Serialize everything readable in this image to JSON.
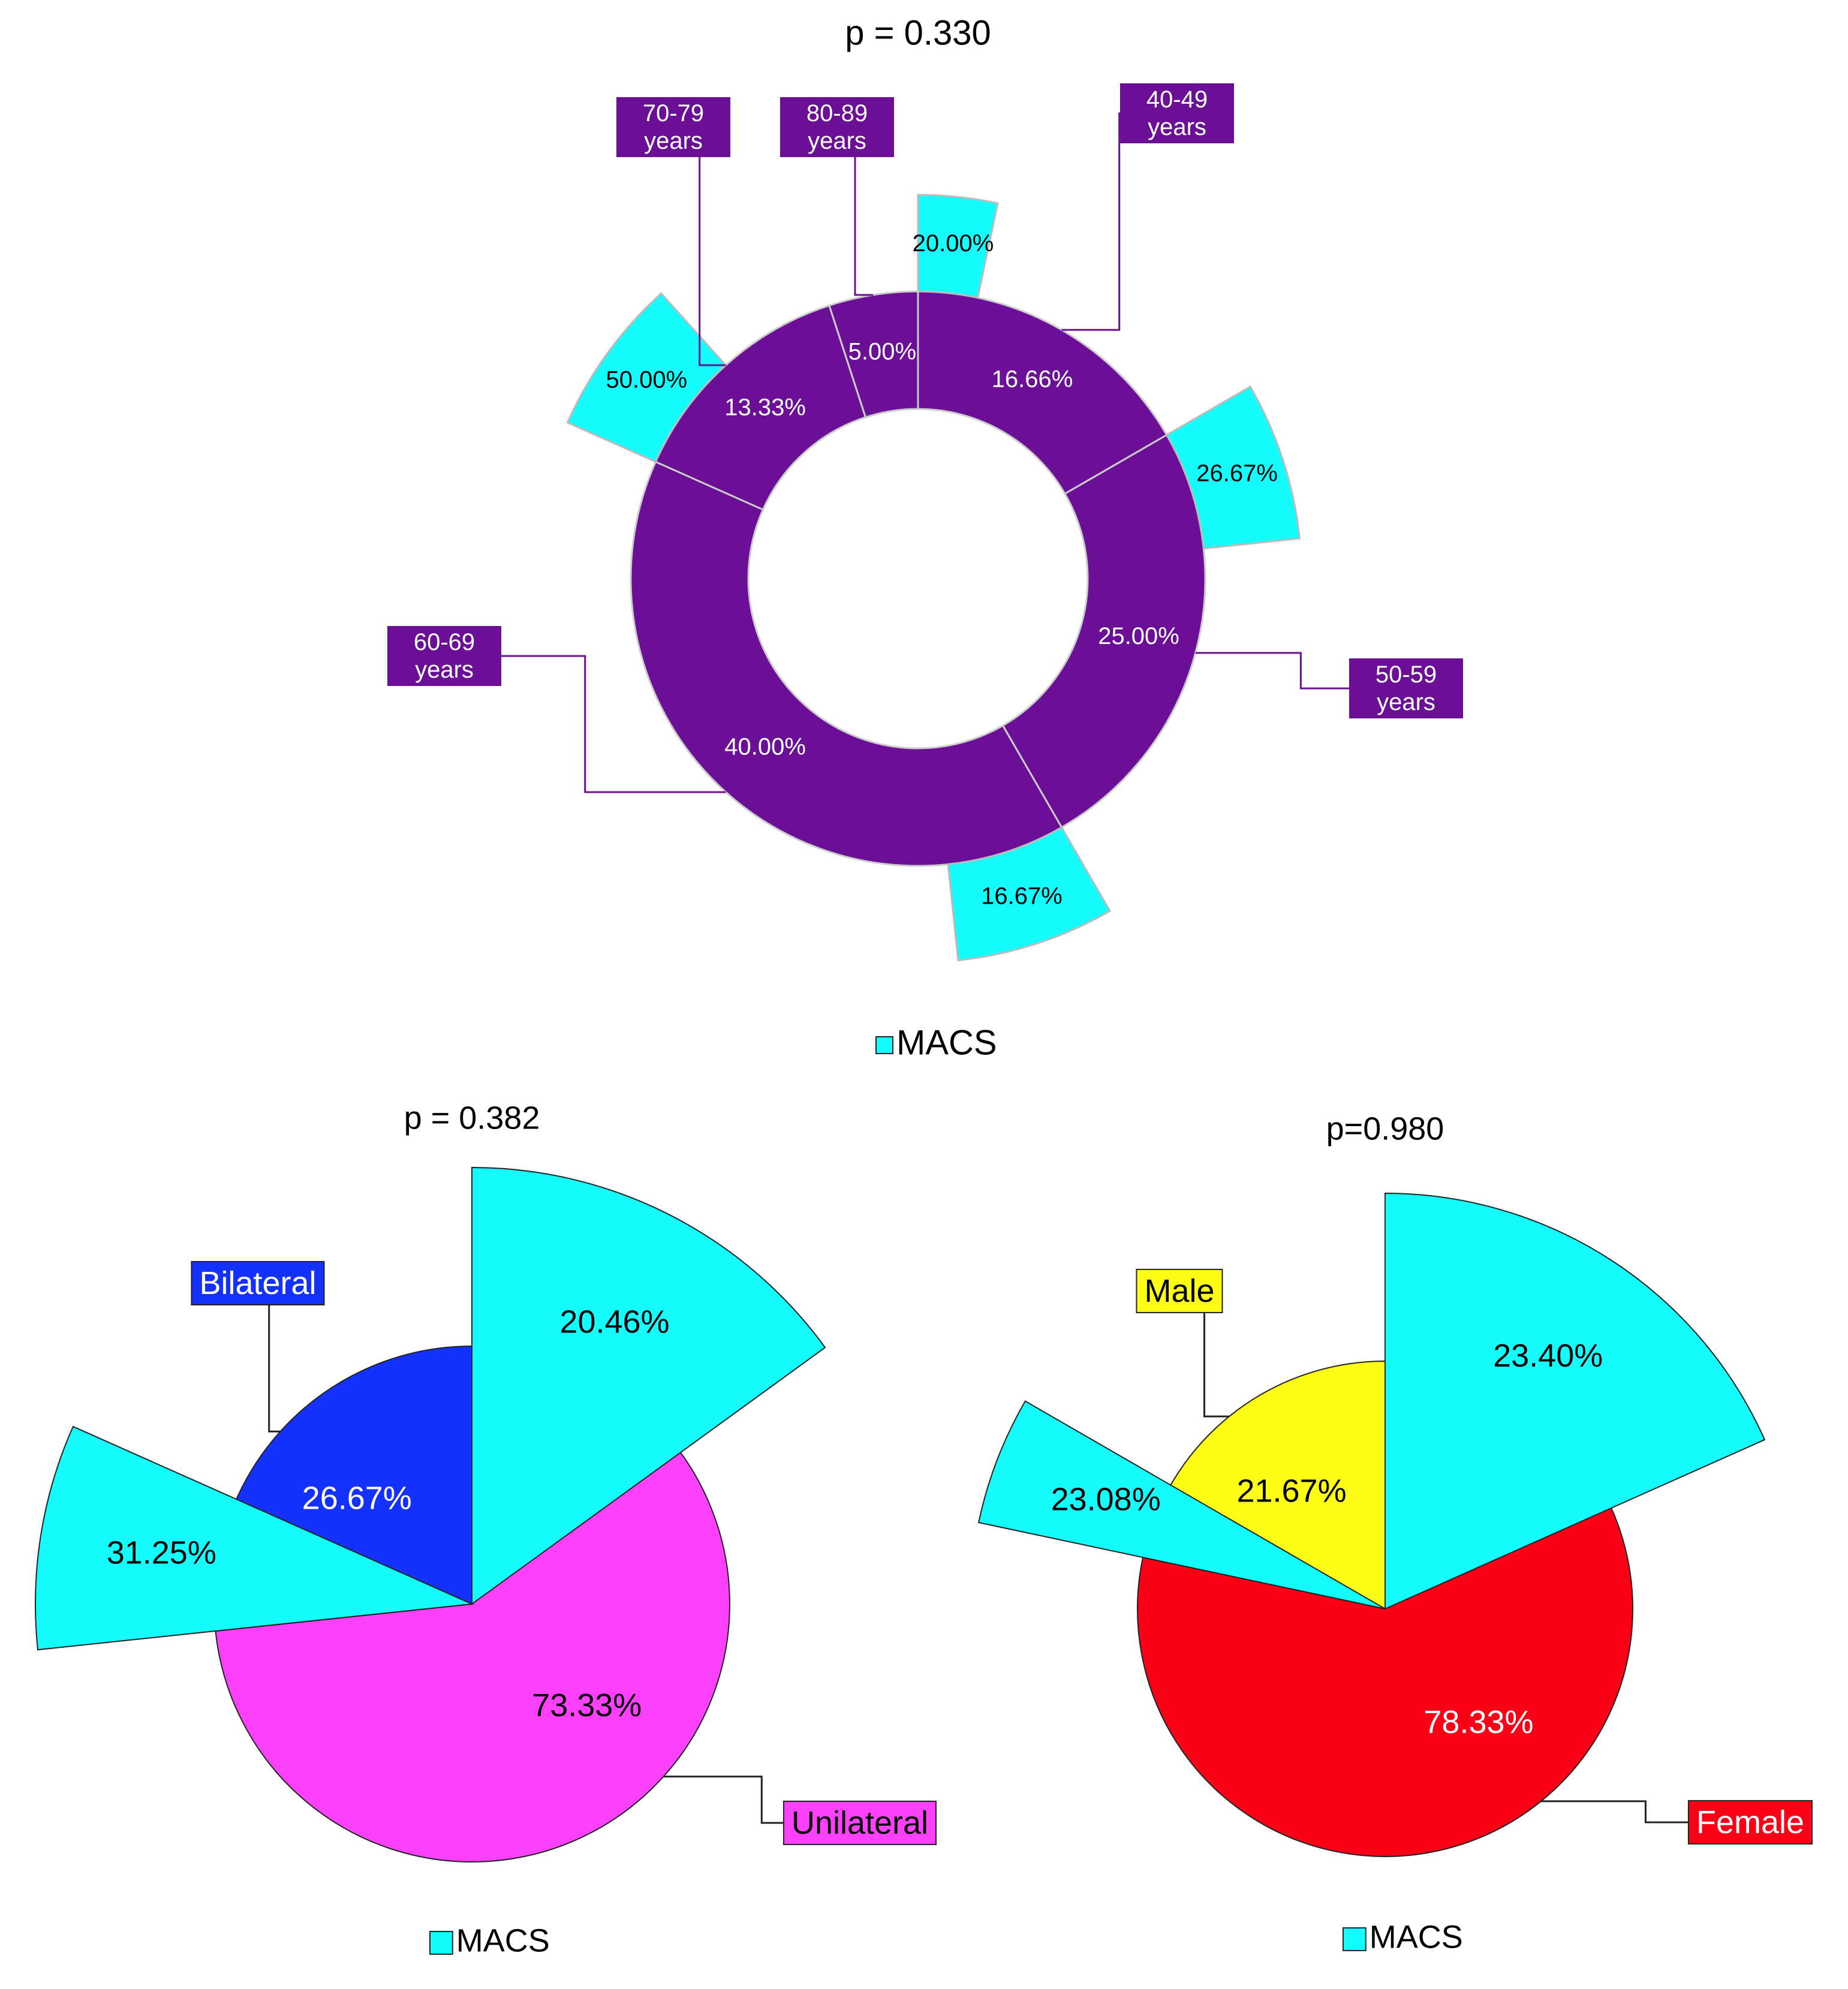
{
  "chart_data": [
    {
      "type": "donut",
      "title": "p = 0.330",
      "categories": [
        "40-49 years",
        "50-59 years",
        "60-69 years",
        "70-79 years",
        "80-89 years"
      ],
      "values": [
        16.66,
        25.0,
        40.0,
        13.33,
        5.0
      ],
      "value_labels": [
        "16.66%",
        "25.00%",
        "40.00%",
        "13.33%",
        "5.00%"
      ],
      "color": "#6a0f96",
      "series": [
        {
          "name": "MACS",
          "color": "#14fcfc",
          "values": [
            20.0,
            26.67,
            16.67,
            50.0,
            null
          ],
          "value_labels": [
            "20.00%",
            "26.67%",
            "16.67%",
            "50.00%",
            null
          ]
        }
      ]
    },
    {
      "type": "pie",
      "title": "p = 0.382",
      "categories": [
        "Unilateral",
        "Bilateral"
      ],
      "values": [
        73.33,
        26.67
      ],
      "value_labels": [
        "73.33%",
        "26.67%"
      ],
      "colors": [
        "#fc40fc",
        "#1432fc"
      ],
      "series": [
        {
          "name": "MACS",
          "color": "#14fcfc",
          "values": [
            20.46,
            31.25
          ],
          "value_labels": [
            "20.46%",
            "31.25%"
          ]
        }
      ]
    },
    {
      "type": "pie",
      "title": "p=0.980",
      "categories": [
        "Female",
        "Male"
      ],
      "values": [
        78.33,
        21.67
      ],
      "value_labels": [
        "78.33%",
        "21.67%"
      ],
      "colors": [
        "#fc0018",
        "#fcfc14"
      ],
      "series": [
        {
          "name": "MACS",
          "color": "#14fcfc",
          "values": [
            23.4,
            23.08
          ],
          "value_labels": [
            "23.40%",
            "23.08%"
          ]
        }
      ]
    }
  ]
}
